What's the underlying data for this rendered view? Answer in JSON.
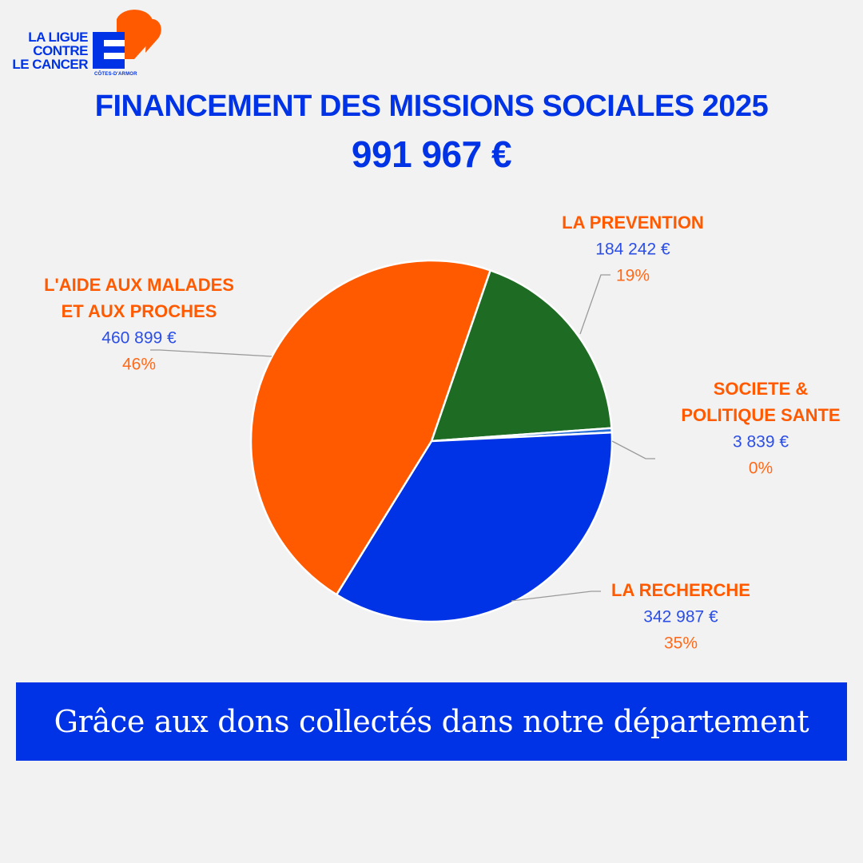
{
  "logo": {
    "lines": [
      "LA LIGUE",
      "CONTRE",
      "LE CANCER"
    ],
    "subtitle": "CÔTES-D'ARMOR",
    "colors": {
      "blue": "#0033e6",
      "orange": "#ff5a00"
    }
  },
  "header": {
    "title": "FINANCEMENT DES MISSIONS SOCIALES 2025",
    "total": "991 967 €"
  },
  "banner": {
    "text": "Grâce aux dons collectés dans notre département"
  },
  "chart_data": {
    "type": "pie",
    "unit": "€",
    "slices": [
      {
        "key": "prevention",
        "lines": [
          "LA PREVENTION"
        ],
        "value": 184242,
        "value_label": "184 242 €",
        "percent_label": "19%",
        "color": "#1e6b24"
      },
      {
        "key": "societe",
        "lines": [
          "SOCIETE &",
          "POLITIQUE SANTE"
        ],
        "value": 3839,
        "value_label": "3 839 €",
        "percent_label": "0%",
        "color": "#2a6fd6"
      },
      {
        "key": "recherche",
        "lines": [
          "LA RECHERCHE"
        ],
        "value": 342987,
        "value_label": "342 987 €",
        "percent_label": "35%",
        "color": "#0033e6"
      },
      {
        "key": "aide",
        "lines": [
          "L'AIDE AUX MALADES",
          "ET AUX PROCHES"
        ],
        "value": 460899,
        "value_label": "460 899 €",
        "percent_label": "46%",
        "color": "#ff5a00"
      }
    ]
  }
}
